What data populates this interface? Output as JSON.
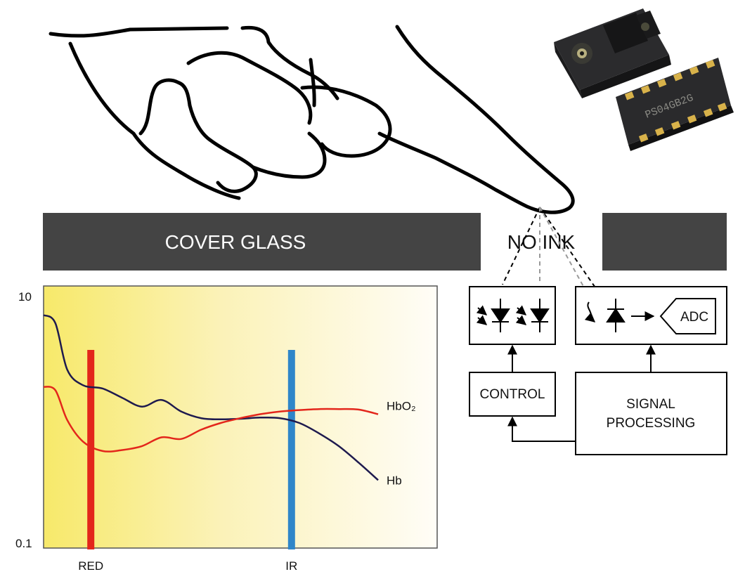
{
  "cover_glass": {
    "label": "COVER GLASS",
    "window_label": "NO INK",
    "color": "#444444"
  },
  "blocks": {
    "control": "CONTROL",
    "signal_processing": [
      "SIGNAL",
      "PROCESSING"
    ],
    "adc": "ADC"
  },
  "sensor_chip": {
    "marking": "PS04GB2G"
  },
  "chart_data": {
    "type": "line",
    "title": "",
    "xlabel": "",
    "ylabel": "",
    "y_scale": "log",
    "ylim": [
      0.1,
      10
    ],
    "ytick_labels": [
      "10",
      "0.1"
    ],
    "x_markers": [
      {
        "name": "RED",
        "color": "#e3261b",
        "position": 0.12
      },
      {
        "name": "IR",
        "color": "#2f86c9",
        "position": 0.63
      }
    ],
    "x": [
      0,
      0.03,
      0.06,
      0.1,
      0.15,
      0.2,
      0.25,
      0.3,
      0.35,
      0.4,
      0.45,
      0.5,
      0.55,
      0.6,
      0.65,
      0.7,
      0.75,
      0.8,
      0.85
    ],
    "series": [
      {
        "name": "Hb",
        "color": "#1e1a4e",
        "values": [
          6,
          5.2,
          2.3,
          1.75,
          1.65,
          1.4,
          1.2,
          1.35,
          1.1,
          0.98,
          0.96,
          0.97,
          0.99,
          0.98,
          0.9,
          0.75,
          0.6,
          0.45,
          0.33
        ]
      },
      {
        "name": "HbO₂",
        "color": "#e3261b",
        "values": [
          1.7,
          1.6,
          0.95,
          0.65,
          0.55,
          0.56,
          0.6,
          0.7,
          0.68,
          0.8,
          0.9,
          0.98,
          1.05,
          1.1,
          1.13,
          1.15,
          1.15,
          1.14,
          1.05
        ]
      }
    ]
  }
}
